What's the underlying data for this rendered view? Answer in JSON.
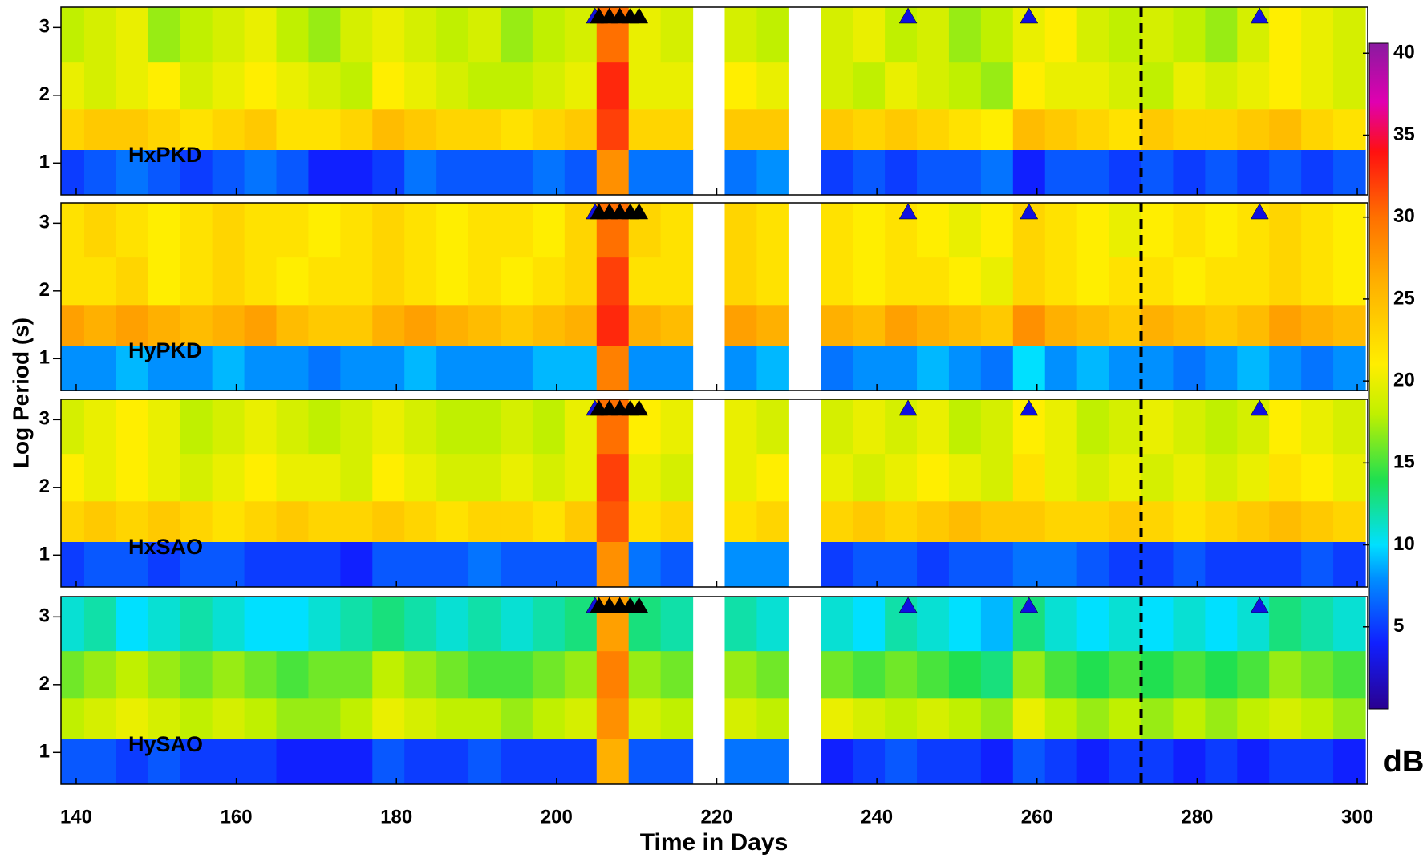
{
  "chart_data": {
    "type": "heatmap",
    "x_label": "Time in Days",
    "y_label": "Log Period (s)",
    "colorbar_label": "dB",
    "xlim": [
      138.1,
      301.3
    ],
    "xticks": [
      140,
      160,
      180,
      200,
      220,
      240,
      260,
      280,
      300
    ],
    "ylim": [
      0.53,
      3.3
    ],
    "yticks": [
      1,
      2,
      3
    ],
    "zlim": [
      0,
      40.6
    ],
    "zticks": [
      5,
      10,
      15,
      20,
      25,
      30,
      35,
      40
    ],
    "colormap": [
      [
        0,
        "#2a0090"
      ],
      [
        4,
        "#1020ff"
      ],
      [
        8,
        "#0090ff"
      ],
      [
        10,
        "#00e0ff"
      ],
      [
        14,
        "#20e050"
      ],
      [
        18,
        "#c0f000"
      ],
      [
        21,
        "#ffee00"
      ],
      [
        26,
        "#ffb000"
      ],
      [
        30,
        "#ff7000"
      ],
      [
        34,
        "#ff1010"
      ],
      [
        37,
        "#e000b0"
      ],
      [
        40.6,
        "#8a1aa0"
      ]
    ],
    "x_edges": [
      137,
      141,
      145,
      149,
      153,
      157,
      161,
      165,
      169,
      173,
      177,
      181,
      185,
      189,
      193,
      197,
      201,
      205,
      209,
      213,
      217,
      221,
      225,
      229,
      233,
      237,
      241,
      245,
      249,
      253,
      257,
      261,
      265,
      269,
      273,
      277,
      281,
      285,
      289,
      293,
      297,
      301
    ],
    "y_edges": [
      0.53,
      1.2,
      1.8,
      2.5,
      3.3
    ],
    "events_black": [
      205.3,
      206.6,
      207.9,
      209.2,
      210.3
    ],
    "events_blue": [
      204.8,
      243.9,
      259.0,
      287.8
    ],
    "dashed_line_x": 273.0,
    "panels": [
      {
        "name": "HxPKD",
        "z": [
          [
            5,
            6,
            7,
            6,
            5,
            6,
            7,
            6,
            4,
            4,
            5,
            7,
            6,
            6,
            6,
            7,
            6,
            28,
            7,
            7,
            null,
            7,
            8,
            null,
            5,
            6,
            5,
            6,
            6,
            7,
            4,
            6,
            6,
            5,
            6,
            5,
            6,
            5,
            6,
            5,
            6
          ],
          [
            23,
            24,
            24,
            23,
            22,
            23,
            24,
            22,
            22,
            23,
            25,
            24,
            23,
            23,
            22,
            23,
            24,
            32,
            23,
            23,
            null,
            24,
            24,
            null,
            24,
            23,
            24,
            23,
            22,
            21,
            25,
            24,
            23,
            22,
            24,
            23,
            23,
            24,
            25,
            23,
            22
          ],
          [
            20,
            19,
            20,
            21,
            19,
            20,
            21,
            20,
            19,
            18,
            21,
            20,
            19,
            18,
            18,
            19,
            20,
            33,
            20,
            20,
            null,
            21,
            20,
            null,
            19,
            18,
            20,
            19,
            18,
            17,
            21,
            20,
            20,
            19,
            18,
            20,
            19,
            20,
            21,
            20,
            19
          ],
          [
            18,
            19,
            20,
            17,
            18,
            19,
            20,
            18,
            17,
            19,
            20,
            19,
            18,
            19,
            17,
            18,
            19,
            30,
            20,
            19,
            null,
            19,
            18,
            null,
            19,
            20,
            18,
            19,
            17,
            18,
            20,
            21,
            19,
            18,
            19,
            18,
            17,
            19,
            21,
            20,
            19
          ]
        ]
      },
      {
        "name": "HyPKD",
        "z": [
          [
            8,
            8,
            9,
            8,
            8,
            9,
            8,
            8,
            7,
            8,
            8,
            9,
            8,
            8,
            8,
            9,
            9,
            29,
            8,
            8,
            null,
            8,
            9,
            null,
            7,
            8,
            8,
            9,
            8,
            7,
            10,
            8,
            9,
            8,
            8,
            7,
            8,
            9,
            8,
            7,
            8
          ],
          [
            27,
            26,
            27,
            26,
            25,
            26,
            27,
            25,
            24,
            24,
            26,
            27,
            26,
            25,
            24,
            25,
            26,
            33,
            26,
            25,
            null,
            27,
            26,
            null,
            26,
            25,
            27,
            26,
            25,
            24,
            28,
            26,
            25,
            24,
            26,
            25,
            24,
            25,
            27,
            26,
            25
          ],
          [
            22,
            22,
            23,
            21,
            22,
            23,
            22,
            21,
            22,
            22,
            23,
            22,
            21,
            22,
            21,
            22,
            23,
            32,
            22,
            22,
            null,
            23,
            22,
            null,
            22,
            21,
            22,
            22,
            21,
            20,
            23,
            22,
            21,
            22,
            22,
            21,
            22,
            22,
            23,
            22,
            21
          ],
          [
            22,
            23,
            22,
            21,
            22,
            23,
            22,
            22,
            21,
            22,
            23,
            22,
            21,
            22,
            22,
            21,
            23,
            30,
            23,
            22,
            null,
            23,
            22,
            null,
            22,
            21,
            22,
            21,
            20,
            21,
            23,
            22,
            21,
            20,
            21,
            22,
            21,
            22,
            23,
            22,
            21
          ]
        ]
      },
      {
        "name": "HxSAO",
        "z": [
          [
            5,
            6,
            6,
            5,
            6,
            6,
            5,
            5,
            5,
            4,
            6,
            6,
            6,
            7,
            6,
            6,
            6,
            28,
            7,
            6,
            null,
            8,
            8,
            null,
            5,
            6,
            6,
            5,
            6,
            6,
            7,
            7,
            6,
            5,
            5,
            6,
            5,
            5,
            5,
            6,
            5
          ],
          [
            23,
            24,
            23,
            24,
            23,
            22,
            23,
            24,
            23,
            23,
            24,
            23,
            22,
            23,
            23,
            22,
            24,
            31,
            22,
            23,
            null,
            22,
            23,
            null,
            23,
            24,
            23,
            24,
            25,
            24,
            24,
            23,
            23,
            24,
            23,
            22,
            23,
            24,
            25,
            24,
            23
          ],
          [
            21,
            20,
            21,
            20,
            19,
            20,
            21,
            20,
            20,
            19,
            21,
            20,
            19,
            19,
            20,
            19,
            20,
            32,
            20,
            19,
            null,
            20,
            21,
            null,
            20,
            19,
            20,
            21,
            20,
            19,
            22,
            20,
            19,
            20,
            19,
            20,
            19,
            20,
            22,
            21,
            20
          ],
          [
            19,
            20,
            21,
            20,
            18,
            19,
            20,
            19,
            18,
            19,
            20,
            19,
            18,
            18,
            19,
            18,
            20,
            30,
            21,
            20,
            null,
            20,
            19,
            null,
            19,
            20,
            19,
            20,
            18,
            19,
            21,
            20,
            18,
            19,
            20,
            19,
            18,
            19,
            21,
            20,
            19
          ]
        ]
      },
      {
        "name": "HySAO",
        "z": [
          [
            6,
            6,
            5,
            6,
            5,
            5,
            5,
            4,
            4,
            4,
            6,
            5,
            5,
            6,
            5,
            5,
            5,
            26,
            6,
            6,
            null,
            7,
            7,
            null,
            4,
            5,
            6,
            5,
            5,
            4,
            6,
            5,
            4,
            5,
            5,
            4,
            5,
            4,
            5,
            5,
            4
          ],
          [
            18,
            19,
            20,
            19,
            18,
            19,
            18,
            17,
            17,
            18,
            20,
            19,
            18,
            18,
            17,
            18,
            19,
            28,
            19,
            18,
            null,
            19,
            18,
            null,
            20,
            19,
            18,
            19,
            18,
            17,
            20,
            18,
            17,
            18,
            17,
            18,
            17,
            18,
            19,
            18,
            17
          ],
          [
            16,
            17,
            18,
            17,
            16,
            17,
            16,
            15,
            16,
            16,
            18,
            17,
            16,
            15,
            15,
            16,
            17,
            29,
            17,
            16,
            null,
            17,
            16,
            null,
            16,
            15,
            16,
            15,
            14,
            13,
            17,
            15,
            14,
            15,
            14,
            15,
            14,
            15,
            17,
            16,
            15
          ],
          [
            11,
            12,
            10,
            11,
            12,
            11,
            10,
            10,
            11,
            12,
            13,
            12,
            11,
            12,
            11,
            12,
            13,
            27,
            13,
            12,
            null,
            12,
            11,
            null,
            11,
            10,
            12,
            11,
            10,
            9,
            13,
            11,
            10,
            11,
            10,
            11,
            10,
            11,
            13,
            12,
            11
          ]
        ]
      }
    ]
  }
}
